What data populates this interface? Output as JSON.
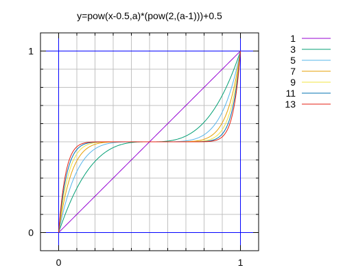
{
  "chart_data": {
    "type": "line",
    "title": "y=pow(x-0.5,a)*(pow(2,(a-1)))+0.5",
    "xlabel": "",
    "ylabel": "",
    "xlim": [
      -0.1,
      1.1
    ],
    "ylim": [
      -0.1,
      1.1
    ],
    "x_ticks": [
      "0",
      "1"
    ],
    "y_ticks": [
      "0",
      "1"
    ],
    "grid": true,
    "legend_position": "top-right",
    "function": "y=pow(x-0.5,a)*(pow(2,(a-1)))+0.5",
    "series": [
      {
        "name": "1",
        "a": 1,
        "color": "#9400d3"
      },
      {
        "name": "3",
        "a": 3,
        "color": "#009e73"
      },
      {
        "name": "5",
        "a": 5,
        "color": "#56b4e9"
      },
      {
        "name": "7",
        "a": 7,
        "color": "#e69f00"
      },
      {
        "name": "9",
        "a": 9,
        "color": "#f0e442"
      },
      {
        "name": "11",
        "a": 11,
        "color": "#0072b2"
      },
      {
        "name": "13",
        "a": 13,
        "color": "#e51e10"
      }
    ],
    "colors": {
      "grid": "#c0c0c0",
      "frame": "#000000",
      "axis": "#0000ff"
    }
  }
}
